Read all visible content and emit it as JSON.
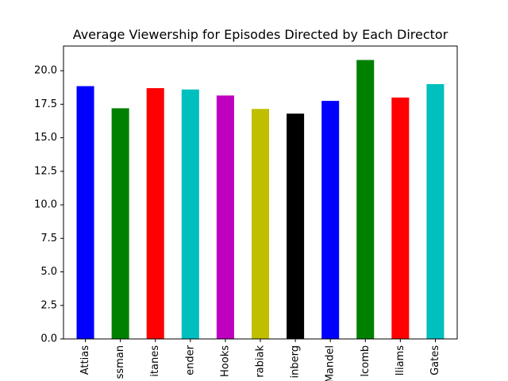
{
  "chart_data": {
    "type": "bar",
    "title": "Average Viewership for Episodes Directed by Each Director",
    "xlabel": "",
    "ylabel": "",
    "categories": [
      "Attias",
      "ssman",
      "itanes",
      "ender",
      "Hooks",
      "rabiak",
      "inberg",
      "Mandel",
      "lcomb",
      "lliams",
      "Gates"
    ],
    "values": [
      18.85,
      17.2,
      18.7,
      18.6,
      18.15,
      17.15,
      16.8,
      17.75,
      20.8,
      18.0,
      19.0
    ],
    "colors": [
      "#0000ff",
      "#008000",
      "#ff0000",
      "#00bfbf",
      "#bf00bf",
      "#bfbf00",
      "#000000",
      "#0000ff",
      "#008000",
      "#ff0000",
      "#00bfbf"
    ],
    "ylim": [
      0,
      21.84
    ],
    "yticks": [
      "0.0",
      "2.5",
      "5.0",
      "7.5",
      "10.0",
      "12.5",
      "15.0",
      "17.5",
      "20.0"
    ],
    "grid": false,
    "legend": "none"
  }
}
